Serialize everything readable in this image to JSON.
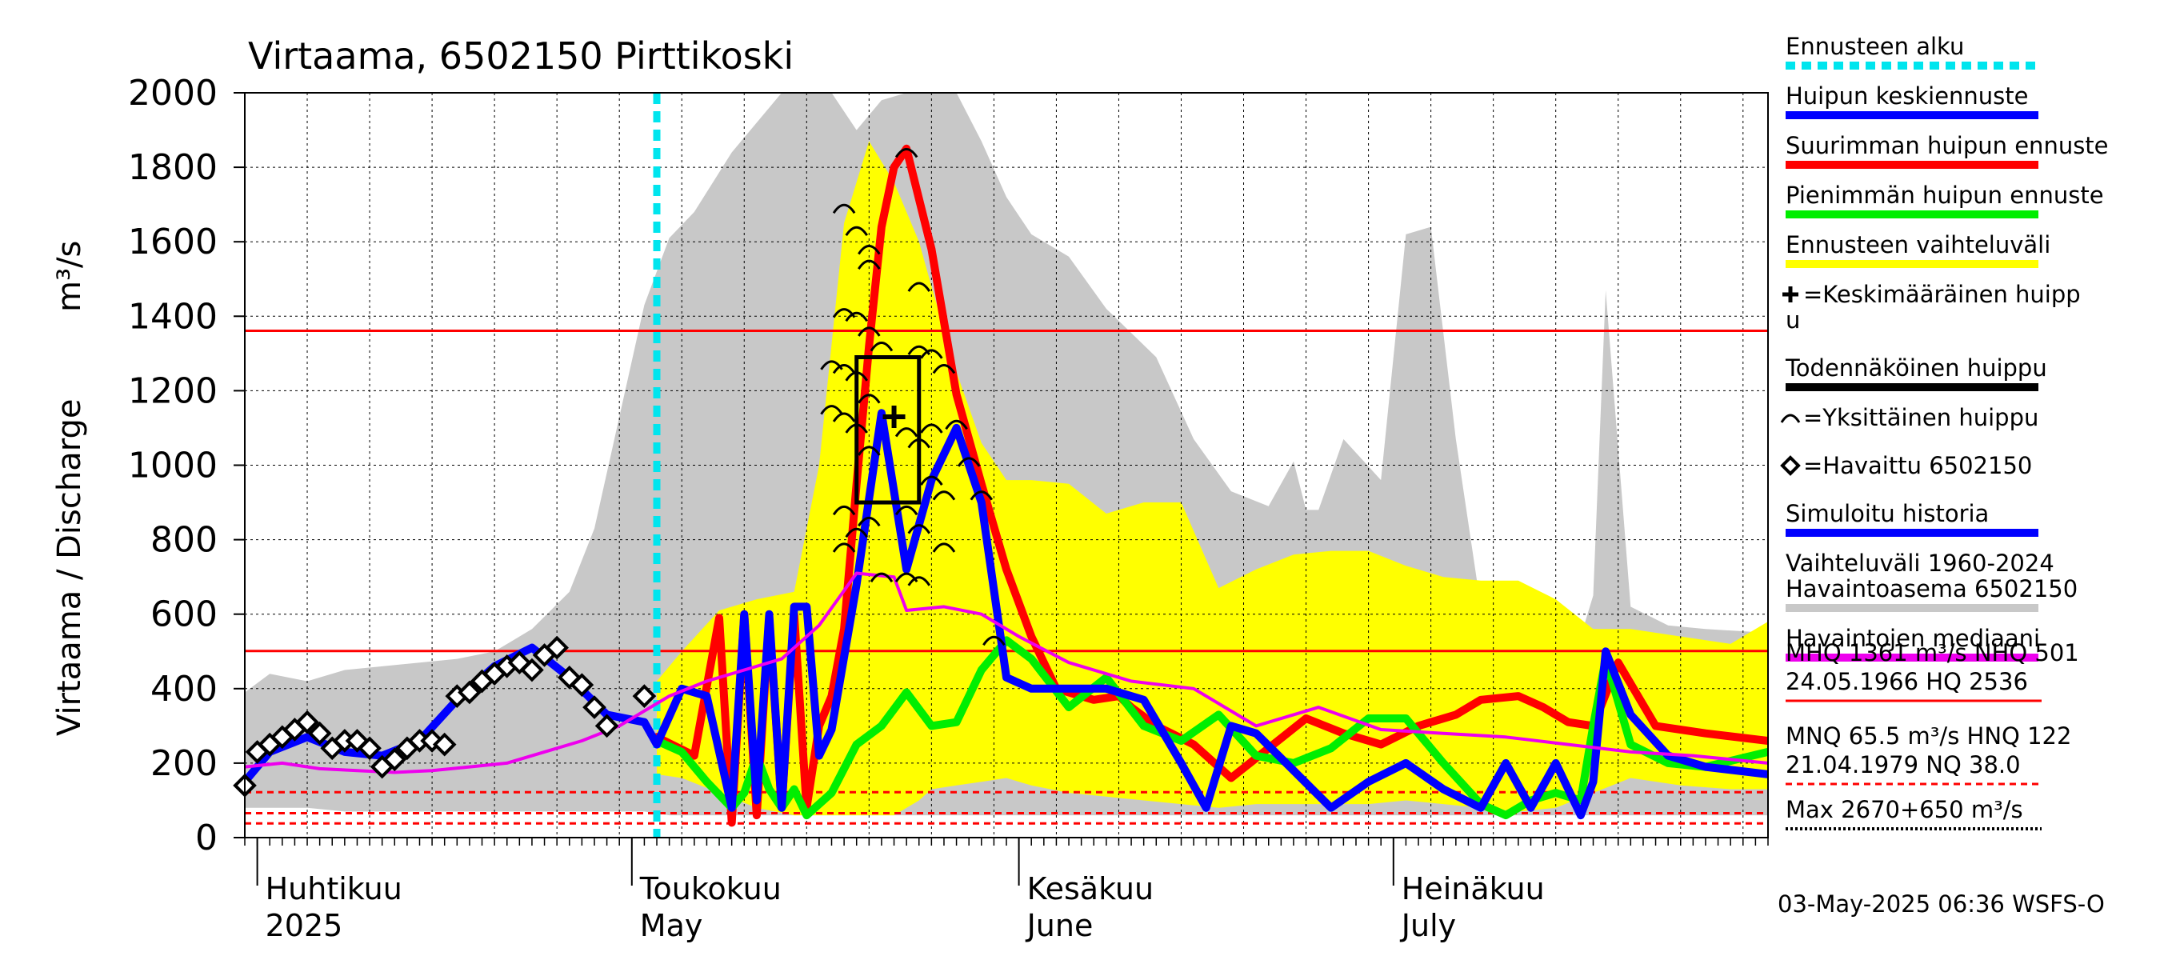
{
  "title": "Virtaama, 6502150 Pirttikoski",
  "ylabel": "Virtaama / Discharge",
  "yunit": "m³/s",
  "footer": "03-May-2025 06:36 WSFS-O",
  "colors": {
    "forecast_start": "#00e5ee",
    "mean_forecast": "#0000ff",
    "max_forecast": "#ff0000",
    "min_forecast": "#00ee00",
    "forecast_range": "#ffff00",
    "history_range": "#c8c8c8",
    "median": "#ee00ee",
    "observed": "#000000",
    "reference_line": "#ff0000"
  },
  "legend": [
    {
      "text": "Ennusteen alku",
      "style": "dashed",
      "color": "#00e5ee"
    },
    {
      "text": "Huipun keskiennuste",
      "style": "solid",
      "color": "#0000ff"
    },
    {
      "text": "Suurimman huipun ennuste",
      "style": "solid",
      "color": "#ff0000"
    },
    {
      "text": "Pienimmän huipun ennuste",
      "style": "solid",
      "color": "#00ee00"
    },
    {
      "text": "Ennusteen vaihteluväli",
      "style": "solid",
      "color": "#ffff00"
    },
    {
      "text": "=Keskimääräinen huipp",
      "text2": "u",
      "style": "symbol-plus"
    },
    {
      "text": "Todennäköinen huippu",
      "style": "solid",
      "color": "#000000"
    },
    {
      "text": "=Yksittäinen huippu",
      "style": "symbol-arc"
    },
    {
      "text": "=Havaittu 6502150",
      "style": "symbol-diamond"
    },
    {
      "text": "Simuloitu historia",
      "style": "solid",
      "color": "#0000ff"
    },
    {
      "text": "Vaihteluväli 1960-2024",
      "text2": " Havaintoasema 6502150",
      "style": "solid",
      "color": "#c8c8c8"
    },
    {
      "text": "Havaintojen mediaani",
      "style": "solid",
      "color": "#ee00ee"
    }
  ],
  "stats": {
    "line1": "MHQ 1361 m³/s NHQ  501",
    "line2": "24.05.1966 HQ 2536",
    "line3": "MNQ 65.5 m³/s HNQ  122",
    "line4": "21.04.1979 NQ 38.0",
    "line5": "Max 2670+650 m³/s"
  },
  "chart_data": {
    "type": "line",
    "title": "Virtaama, 6502150 Pirttikoski",
    "ylabel": "Virtaama / Discharge",
    "yunit": "m³/s",
    "ylim": [
      0,
      2000
    ],
    "yticks": [
      0,
      200,
      400,
      600,
      800,
      1000,
      1200,
      1400,
      1600,
      1800,
      2000
    ],
    "xlim": [
      "2025-03-31",
      "2025-07-31"
    ],
    "month_labels": [
      {
        "fi": "Huhtikuu",
        "en": "2025",
        "date": "2025-04-01"
      },
      {
        "fi": "Toukokuu",
        "en": "May",
        "date": "2025-05-01"
      },
      {
        "fi": "Kesäkuu",
        "en": "June",
        "date": "2025-06-01"
      },
      {
        "fi": "Heinäkuu",
        "en": "July",
        "date": "2025-07-01"
      }
    ],
    "forecast_start": "2025-05-03",
    "reference_lines": [
      {
        "value": 1361,
        "style": "solid"
      },
      {
        "value": 501,
        "style": "solid"
      },
      {
        "value": 122,
        "style": "dashed"
      },
      {
        "value": 65.5,
        "style": "dashed"
      },
      {
        "value": 38.0,
        "style": "dashed"
      }
    ],
    "history_range": {
      "x": [
        "2025-03-31",
        "2025-04-02",
        "2025-04-05",
        "2025-04-08",
        "2025-04-11",
        "2025-04-14",
        "2025-04-17",
        "2025-04-20",
        "2025-04-23",
        "2025-04-26",
        "2025-04-28",
        "2025-04-30",
        "2025-05-02",
        "2025-05-04",
        "2025-05-06",
        "2025-05-09",
        "2025-05-12",
        "2025-05-13",
        "2025-05-14",
        "2025-05-15",
        "2025-05-17",
        "2025-05-19",
        "2025-05-21",
        "2025-05-23",
        "2025-05-25",
        "2025-05-27",
        "2025-05-29",
        "2025-05-31",
        "2025-06-02",
        "2025-06-05",
        "2025-06-08",
        "2025-06-12",
        "2025-06-15",
        "2025-06-18",
        "2025-06-21",
        "2025-06-23",
        "2025-06-24",
        "2025-06-25",
        "2025-06-27",
        "2025-06-30",
        "2025-07-02",
        "2025-07-04",
        "2025-07-06",
        "2025-07-08",
        "2025-07-11",
        "2025-07-14",
        "2025-07-16",
        "2025-07-17",
        "2025-07-18",
        "2025-07-20",
        "2025-07-23",
        "2025-07-26",
        "2025-07-31"
      ],
      "upper": [
        390,
        440,
        420,
        450,
        460,
        470,
        480,
        500,
        560,
        660,
        830,
        1130,
        1430,
        1610,
        1680,
        1840,
        1960,
        2000,
        2000,
        2000,
        2000,
        1900,
        1980,
        2000,
        2000,
        2000,
        1870,
        1720,
        1620,
        1560,
        1420,
        1290,
        1070,
        930,
        890,
        1010,
        880,
        880,
        1070,
        960,
        1620,
        1640,
        1070,
        620,
        610,
        600,
        540,
        650,
        1470,
        620,
        570,
        560,
        550
      ],
      "lower": [
        80,
        80,
        80,
        70,
        70,
        70,
        70,
        70,
        70,
        70,
        70,
        70,
        70,
        60,
        60,
        60,
        60,
        60,
        60,
        60,
        60,
        60,
        60,
        60,
        60,
        60,
        60,
        60,
        60,
        60,
        60,
        60,
        60,
        60,
        60,
        60,
        60,
        60,
        60,
        60,
        60,
        60,
        60,
        60,
        60,
        60,
        60,
        60,
        60,
        60,
        60,
        60,
        60
      ]
    },
    "forecast_range": {
      "x": [
        "2025-05-03",
        "2025-05-05",
        "2025-05-08",
        "2025-05-11",
        "2025-05-14",
        "2025-05-16",
        "2025-05-18",
        "2025-05-20",
        "2025-05-22",
        "2025-05-24",
        "2025-05-25",
        "2025-05-27",
        "2025-05-29",
        "2025-05-31",
        "2025-06-02",
        "2025-06-05",
        "2025-06-08",
        "2025-06-11",
        "2025-06-14",
        "2025-06-17",
        "2025-06-20",
        "2025-06-23",
        "2025-06-26",
        "2025-06-29",
        "2025-07-02",
        "2025-07-05",
        "2025-07-08",
        "2025-07-11",
        "2025-07-14",
        "2025-07-17",
        "2025-07-20",
        "2025-07-24",
        "2025-07-28",
        "2025-07-31"
      ],
      "upper": [
        420,
        500,
        610,
        640,
        660,
        1000,
        1650,
        1870,
        1760,
        1600,
        1480,
        1250,
        1060,
        960,
        960,
        950,
        870,
        900,
        900,
        670,
        720,
        760,
        770,
        770,
        730,
        700,
        690,
        690,
        640,
        560,
        560,
        540,
        520,
        580
      ],
      "lower": [
        170,
        160,
        120,
        80,
        60,
        60,
        60,
        60,
        60,
        100,
        130,
        140,
        150,
        160,
        140,
        120,
        110,
        100,
        90,
        80,
        90,
        90,
        90,
        90,
        100,
        90,
        80,
        70,
        80,
        120,
        160,
        140,
        130,
        130
      ]
    },
    "series": [
      {
        "name": "Suurimman huipun ennuste",
        "x": [
          "2025-05-03",
          "2025-05-06",
          "2025-05-08",
          "2025-05-09",
          "2025-05-10",
          "2025-05-11",
          "2025-05-12",
          "2025-05-13",
          "2025-05-14",
          "2025-05-15",
          "2025-05-16",
          "2025-05-17",
          "2025-05-18",
          "2025-05-19",
          "2025-05-20",
          "2025-05-21",
          "2025-05-22",
          "2025-05-23",
          "2025-05-25",
          "2025-05-27",
          "2025-05-29",
          "2025-05-31",
          "2025-06-02",
          "2025-06-04",
          "2025-06-07",
          "2025-06-09",
          "2025-06-10",
          "2025-06-12",
          "2025-06-15",
          "2025-06-18",
          "2025-06-21",
          "2025-06-24",
          "2025-06-27",
          "2025-06-30",
          "2025-07-03",
          "2025-07-06",
          "2025-07-08",
          "2025-07-11",
          "2025-07-13",
          "2025-07-15",
          "2025-07-17",
          "2025-07-19",
          "2025-07-22",
          "2025-07-26",
          "2025-07-31"
        ],
        "values": [
          270,
          220,
          590,
          40,
          600,
          60,
          590,
          80,
          600,
          80,
          300,
          380,
          560,
          950,
          1320,
          1640,
          1800,
          1850,
          1580,
          1190,
          950,
          720,
          540,
          400,
          370,
          380,
          350,
          300,
          250,
          160,
          240,
          320,
          280,
          250,
          300,
          330,
          370,
          380,
          350,
          310,
          300,
          470,
          300,
          280,
          260
        ]
      },
      {
        "name": "Pienimmän huipun ennuste",
        "x": [
          "2025-05-03",
          "2025-05-05",
          "2025-05-07",
          "2025-05-09",
          "2025-05-10",
          "2025-05-11",
          "2025-05-12",
          "2025-05-13",
          "2025-05-14",
          "2025-05-15",
          "2025-05-17",
          "2025-05-19",
          "2025-05-21",
          "2025-05-23",
          "2025-05-25",
          "2025-05-27",
          "2025-05-29",
          "2025-05-31",
          "2025-06-02",
          "2025-06-05",
          "2025-06-08",
          "2025-06-11",
          "2025-06-14",
          "2025-06-17",
          "2025-06-20",
          "2025-06-23",
          "2025-06-26",
          "2025-06-29",
          "2025-07-02",
          "2025-07-05",
          "2025-07-08",
          "2025-07-10",
          "2025-07-12",
          "2025-07-14",
          "2025-07-16",
          "2025-07-17",
          "2025-07-18",
          "2025-07-20",
          "2025-07-23",
          "2025-07-26",
          "2025-07-31"
        ],
        "values": [
          260,
          230,
          150,
          80,
          120,
          220,
          130,
          80,
          130,
          60,
          120,
          250,
          300,
          390,
          300,
          310,
          450,
          530,
          480,
          350,
          430,
          300,
          260,
          330,
          220,
          200,
          240,
          320,
          320,
          200,
          90,
          60,
          100,
          120,
          100,
          300,
          480,
          250,
          200,
          190,
          230
        ]
      },
      {
        "name": "Huipun keskiennuste",
        "x": [
          "2025-05-02",
          "2025-05-03",
          "2025-05-05",
          "2025-05-07",
          "2025-05-09",
          "2025-05-10",
          "2025-05-11",
          "2025-05-12",
          "2025-05-13",
          "2025-05-14",
          "2025-05-15",
          "2025-05-16",
          "2025-05-17",
          "2025-05-19",
          "2025-05-21",
          "2025-05-23",
          "2025-05-25",
          "2025-05-27",
          "2025-05-29",
          "2025-05-31",
          "2025-06-02",
          "2025-06-05",
          "2025-06-08",
          "2025-06-11",
          "2025-06-14",
          "2025-06-16",
          "2025-06-18",
          "2025-06-20",
          "2025-06-23",
          "2025-06-26",
          "2025-06-29",
          "2025-07-02",
          "2025-07-05",
          "2025-07-08",
          "2025-07-10",
          "2025-07-12",
          "2025-07-14",
          "2025-07-16",
          "2025-07-17",
          "2025-07-18",
          "2025-07-20",
          "2025-07-23",
          "2025-07-26",
          "2025-07-31"
        ],
        "values": [
          310,
          250,
          400,
          380,
          80,
          600,
          100,
          600,
          80,
          620,
          620,
          220,
          290,
          680,
          1140,
          720,
          960,
          1100,
          900,
          430,
          400,
          400,
          400,
          370,
          200,
          80,
          300,
          280,
          180,
          80,
          150,
          200,
          130,
          80,
          200,
          80,
          200,
          60,
          150,
          500,
          330,
          220,
          190,
          170
        ]
      },
      {
        "name": "Simuloitu historia",
        "x": [
          "2025-03-31",
          "2025-04-02",
          "2025-04-05",
          "2025-04-08",
          "2025-04-11",
          "2025-04-14",
          "2025-04-17",
          "2025-04-20",
          "2025-04-23",
          "2025-04-26",
          "2025-04-29",
          "2025-05-02"
        ],
        "values": [
          150,
          230,
          270,
          230,
          220,
          260,
          370,
          460,
          510,
          430,
          330,
          310
        ]
      },
      {
        "name": "Havaintojen mediaani",
        "x": [
          "2025-03-31",
          "2025-04-03",
          "2025-04-06",
          "2025-04-09",
          "2025-04-12",
          "2025-04-15",
          "2025-04-18",
          "2025-04-21",
          "2025-04-24",
          "2025-04-27",
          "2025-04-30",
          "2025-05-02",
          "2025-05-04",
          "2025-05-07",
          "2025-05-10",
          "2025-05-13",
          "2025-05-16",
          "2025-05-19",
          "2025-05-22",
          "2025-05-23",
          "2025-05-26",
          "2025-05-29",
          "2025-06-01",
          "2025-06-05",
          "2025-06-10",
          "2025-06-15",
          "2025-06-20",
          "2025-06-25",
          "2025-06-30",
          "2025-07-05",
          "2025-07-10",
          "2025-07-15",
          "2025-07-20",
          "2025-07-25",
          "2025-07-31"
        ],
        "values": [
          190,
          200,
          185,
          180,
          175,
          180,
          190,
          200,
          230,
          260,
          300,
          340,
          380,
          420,
          450,
          480,
          570,
          710,
          700,
          610,
          620,
          600,
          540,
          470,
          420,
          400,
          300,
          350,
          290,
          280,
          270,
          250,
          230,
          220,
          200
        ]
      }
    ],
    "observed": {
      "name": "=Havaittu 6502150",
      "x": [
        "2025-03-31",
        "2025-04-01",
        "2025-04-02",
        "2025-04-03",
        "2025-04-04",
        "2025-04-05",
        "2025-04-06",
        "2025-04-07",
        "2025-04-08",
        "2025-04-09",
        "2025-04-10",
        "2025-04-11",
        "2025-04-12",
        "2025-04-13",
        "2025-04-14",
        "2025-04-15",
        "2025-04-16",
        "2025-04-17",
        "2025-04-18",
        "2025-04-19",
        "2025-04-20",
        "2025-04-21",
        "2025-04-22",
        "2025-04-23",
        "2025-04-24",
        "2025-04-25",
        "2025-04-26",
        "2025-04-27",
        "2025-04-28",
        "2025-04-29",
        "2025-05-02"
      ],
      "values": [
        140,
        230,
        250,
        270,
        290,
        310,
        280,
        240,
        260,
        260,
        240,
        190,
        210,
        240,
        260,
        260,
        250,
        380,
        390,
        420,
        440,
        460,
        470,
        450,
        490,
        510,
        430,
        410,
        350,
        300,
        380
      ]
    },
    "individual_peaks": {
      "name": "=Yksittäinen huippu",
      "points": [
        {
          "x": "2025-05-18",
          "y": 1690
        },
        {
          "x": "2025-05-19",
          "y": 1630
        },
        {
          "x": "2025-05-20",
          "y": 1580
        },
        {
          "x": "2025-05-20",
          "y": 1540
        },
        {
          "x": "2025-05-19",
          "y": 1400
        },
        {
          "x": "2025-05-18",
          "y": 1410
        },
        {
          "x": "2025-05-20",
          "y": 1360
        },
        {
          "x": "2025-05-21",
          "y": 1320
        },
        {
          "x": "2025-05-17",
          "y": 1270
        },
        {
          "x": "2025-05-18",
          "y": 1260
        },
        {
          "x": "2025-05-19",
          "y": 1240
        },
        {
          "x": "2025-05-20",
          "y": 1180
        },
        {
          "x": "2025-05-17",
          "y": 1150
        },
        {
          "x": "2025-05-18",
          "y": 1130
        },
        {
          "x": "2025-05-19",
          "y": 1100
        },
        {
          "x": "2025-05-20",
          "y": 1040
        },
        {
          "x": "2025-05-18",
          "y": 880
        },
        {
          "x": "2025-05-19",
          "y": 820
        },
        {
          "x": "2025-05-20",
          "y": 850
        },
        {
          "x": "2025-05-18",
          "y": 780
        },
        {
          "x": "2025-05-21",
          "y": 700
        },
        {
          "x": "2025-05-23",
          "y": 1840
        },
        {
          "x": "2025-05-24",
          "y": 1480
        },
        {
          "x": "2025-05-24",
          "y": 1310
        },
        {
          "x": "2025-05-25",
          "y": 1300
        },
        {
          "x": "2025-05-26",
          "y": 1260
        },
        {
          "x": "2025-05-23",
          "y": 1090
        },
        {
          "x": "2025-05-24",
          "y": 1060
        },
        {
          "x": "2025-05-25",
          "y": 1100
        },
        {
          "x": "2025-05-27",
          "y": 1110
        },
        {
          "x": "2025-05-25",
          "y": 960
        },
        {
          "x": "2025-05-26",
          "y": 920
        },
        {
          "x": "2025-05-23",
          "y": 880
        },
        {
          "x": "2025-05-24",
          "y": 830
        },
        {
          "x": "2025-05-26",
          "y": 780
        },
        {
          "x": "2025-05-28",
          "y": 1010
        },
        {
          "x": "2025-05-29",
          "y": 920
        },
        {
          "x": "2025-05-23",
          "y": 700
        },
        {
          "x": "2025-05-24",
          "y": 690
        },
        {
          "x": "2025-05-30",
          "y": 530
        }
      ]
    },
    "mean_peak": {
      "name": "=Keskimääräinen huippu",
      "x": "2025-05-22",
      "y": 1130
    },
    "probable_peak_box": {
      "name": "Todennäköinen huippu",
      "x0": "2025-05-19",
      "x1": "2025-05-24",
      "y0": 900,
      "y1": 1290
    }
  }
}
